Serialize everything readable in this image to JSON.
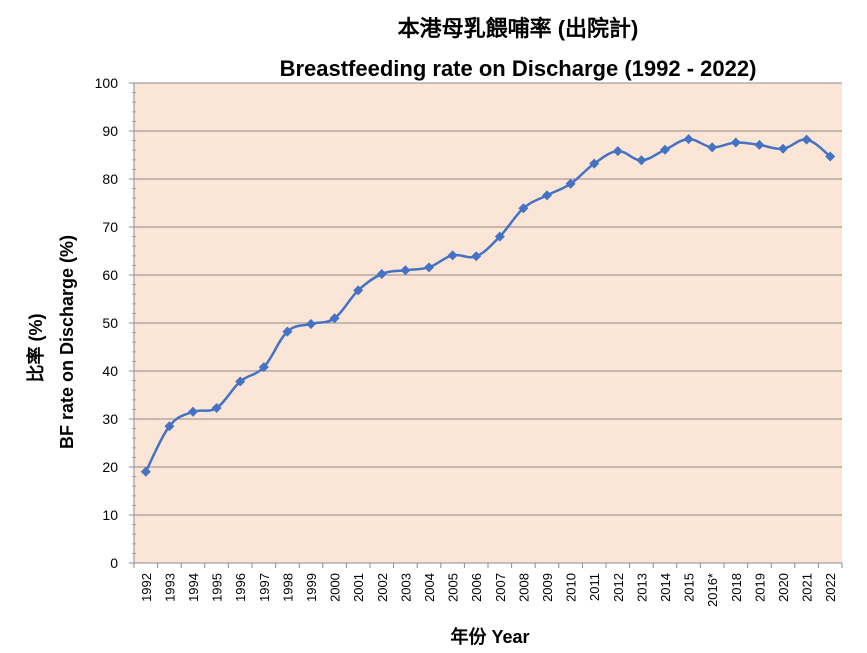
{
  "chart_data": {
    "type": "line",
    "title": "本港母乳餵哺率 (出院計)",
    "subtitle": "Breastfeeding rate on Discharge (1992 - 2022)",
    "ylabel_line1": "比率 (%)",
    "ylabel_line2": "BF rate on Discharge (%)",
    "xlabel": "年份 Year",
    "ylim": [
      0,
      100
    ],
    "yticks": [
      "0",
      "10",
      "20",
      "30",
      "40",
      "50",
      "60",
      "70",
      "80",
      "90",
      "100"
    ],
    "categories": [
      "1992",
      "1993",
      "1994",
      "1995",
      "1996",
      "1997",
      "1998",
      "1999",
      "2000",
      "2001",
      "2002",
      "2003",
      "2004",
      "2005",
      "2006",
      "2007",
      "2008",
      "2009",
      "2010",
      "2011",
      "2012",
      "2013",
      "2014",
      "2015",
      "2016*",
      "2018",
      "2019",
      "2020",
      "2021",
      "2022"
    ],
    "series": [
      {
        "values": [
          19,
          28.5,
          31.5,
          32.3,
          37.8,
          40.8,
          48.2,
          49.8,
          51,
          56.8,
          60.2,
          61,
          61.6,
          64.1,
          63.9,
          68,
          73.9,
          76.6,
          79,
          83.2,
          85.8,
          83.9,
          86.1,
          88.3,
          86.6,
          87.6,
          87.1,
          86.3,
          88.2,
          84.7
        ]
      }
    ],
    "grid": true,
    "plot_background": "#FBE5D6",
    "line_color": "#4472C4"
  }
}
